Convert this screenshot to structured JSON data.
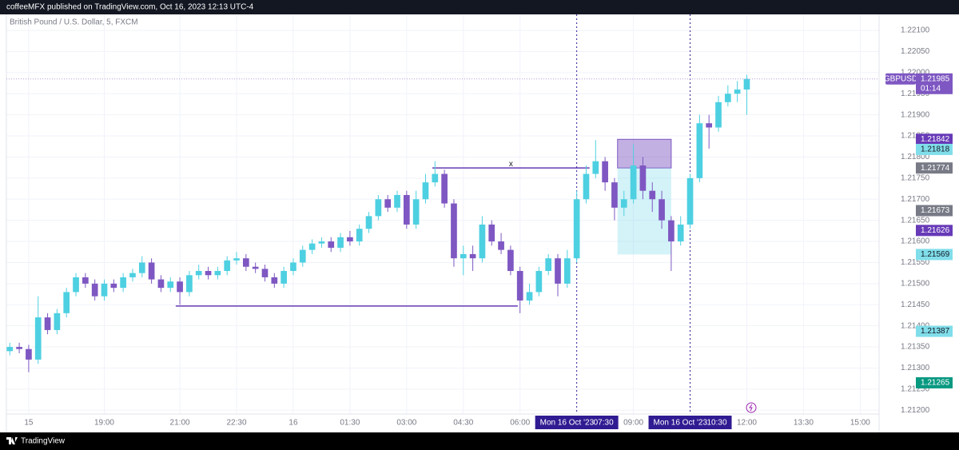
{
  "header": {
    "text": "coffeeMFX published on TradingView.com, Oct 16, 2023 12:13 UTC-4"
  },
  "footer": {
    "brand": "TradingView"
  },
  "chart_data": {
    "type": "candlestick",
    "title": "British Pound / U.S. Dollar, 5, FXCM",
    "up_color": "#4dd0e1",
    "down_color": "#7e57c2",
    "xlim": [
      16.41,
      39.5
    ],
    "ylim": [
      1.21191,
      1.22138
    ],
    "xticks": [
      {
        "value": 17,
        "label": "15"
      },
      {
        "value": 19,
        "label": "19:00"
      },
      {
        "value": 21,
        "label": "21:00"
      },
      {
        "value": 22.5,
        "label": "22:30"
      },
      {
        "value": 24,
        "label": "16"
      },
      {
        "value": 25.5,
        "label": "01:30"
      },
      {
        "value": 27,
        "label": "03:00"
      },
      {
        "value": 28.5,
        "label": "04:30"
      },
      {
        "value": 30,
        "label": "06:00"
      },
      {
        "value": 33,
        "label": "09:00"
      },
      {
        "value": 36,
        "label": "12:00"
      },
      {
        "value": 37.5,
        "label": "13:30"
      },
      {
        "value": 39,
        "label": "15:00"
      }
    ],
    "yticks": [
      {
        "value": 1.221,
        "label": "1.22100"
      },
      {
        "value": 1.2205,
        "label": "1.22050"
      },
      {
        "value": 1.22,
        "label": "1.22000"
      },
      {
        "value": 1.2195,
        "label": "1.21950"
      },
      {
        "value": 1.219,
        "label": "1.21900"
      },
      {
        "value": 1.2185,
        "label": "1.21850"
      },
      {
        "value": 1.218,
        "label": "1.21800"
      },
      {
        "value": 1.2175,
        "label": "1.21750"
      },
      {
        "value": 1.217,
        "label": "1.21700"
      },
      {
        "value": 1.2165,
        "label": "1.21650"
      },
      {
        "value": 1.216,
        "label": "1.21600"
      },
      {
        "value": 1.2155,
        "label": "1.21550"
      },
      {
        "value": 1.215,
        "label": "1.21500"
      },
      {
        "value": 1.2145,
        "label": "1.21450"
      },
      {
        "value": 1.214,
        "label": "1.21400"
      },
      {
        "value": 1.2135,
        "label": "1.21350"
      },
      {
        "value": 1.213,
        "label": "1.21300"
      },
      {
        "value": 1.2125,
        "label": "1.21250"
      },
      {
        "value": 1.212,
        "label": "1.21200"
      }
    ],
    "x": [
      16.5,
      16.75,
      17,
      17.25,
      17.5,
      17.75,
      18,
      18.25,
      18.5,
      18.75,
      19,
      19.25,
      19.5,
      19.75,
      20,
      20.25,
      20.5,
      20.75,
      21,
      21.25,
      21.5,
      21.75,
      22,
      22.25,
      22.5,
      22.75,
      23,
      23.25,
      23.5,
      23.75,
      24,
      24.25,
      24.5,
      24.75,
      25,
      25.25,
      25.5,
      25.75,
      26,
      26.25,
      26.5,
      26.75,
      27,
      27.25,
      27.5,
      27.75,
      28,
      28.25,
      28.5,
      28.75,
      29,
      29.25,
      29.5,
      29.75,
      30,
      30.25,
      30.5,
      30.75,
      31,
      31.25,
      31.5,
      31.75,
      32,
      32.25,
      32.5,
      32.75,
      33,
      33.25,
      33.5,
      33.75,
      34,
      34.25,
      34.5,
      34.75,
      35,
      35.25,
      35.5,
      35.75,
      36
    ],
    "open": [
      1.2134,
      1.2135,
      1.21345,
      1.2132,
      1.2142,
      1.2139,
      1.2143,
      1.2148,
      1.21515,
      1.215,
      1.2147,
      1.215,
      1.2149,
      1.21515,
      1.21525,
      1.2155,
      1.2151,
      1.2149,
      1.21505,
      1.2148,
      1.2152,
      1.2153,
      1.2152,
      1.2153,
      1.21555,
      1.2156,
      1.2154,
      1.21535,
      1.21515,
      1.215,
      1.2153,
      1.2155,
      1.2158,
      1.21595,
      1.216,
      1.21585,
      1.2161,
      1.216,
      1.2163,
      1.2166,
      1.217,
      1.2168,
      1.2171,
      1.2164,
      1.217,
      1.2174,
      1.2176,
      1.2169,
      1.2156,
      1.2157,
      1.2156,
      1.2164,
      1.216,
      1.2158,
      1.2153,
      1.2146,
      1.2148,
      1.2153,
      1.2156,
      1.215,
      1.2156,
      1.217,
      1.2176,
      1.2179,
      1.2174,
      1.2168,
      1.217,
      1.2178,
      1.2172,
      1.217,
      1.2165,
      1.216,
      1.2164,
      1.2175,
      1.2188,
      1.2187,
      1.2193,
      1.2195,
      1.2196
    ],
    "high": [
      1.2136,
      1.2136,
      1.21355,
      1.2147,
      1.2143,
      1.2144,
      1.2149,
      1.21525,
      1.21525,
      1.2151,
      1.2151,
      1.2151,
      1.21525,
      1.21535,
      1.21565,
      1.2156,
      1.2152,
      1.21515,
      1.21515,
      1.2153,
      1.21545,
      1.2154,
      1.2154,
      1.21565,
      1.21575,
      1.2157,
      1.2155,
      1.21545,
      1.21525,
      1.2154,
      1.2156,
      1.2159,
      1.21605,
      1.2161,
      1.2161,
      1.2162,
      1.21625,
      1.2164,
      1.2167,
      1.2171,
      1.2171,
      1.2172,
      1.2172,
      1.2172,
      1.2176,
      1.2179,
      1.2177,
      1.217,
      1.2159,
      1.2159,
      1.2166,
      1.2165,
      1.2162,
      1.2159,
      1.2154,
      1.215,
      1.2154,
      1.2157,
      1.2157,
      1.2158,
      1.2172,
      1.2178,
      1.2184,
      1.218,
      1.2175,
      1.2172,
      1.2183,
      1.218,
      1.2174,
      1.2172,
      1.2166,
      1.2166,
      1.2176,
      1.219,
      1.219,
      1.21945,
      1.2197,
      1.2198,
      1.21995
    ],
    "low": [
      1.2133,
      1.21335,
      1.2129,
      1.2131,
      1.2138,
      1.2138,
      1.2142,
      1.2147,
      1.2149,
      1.2146,
      1.2146,
      1.2148,
      1.2148,
      1.21505,
      1.21515,
      1.215,
      1.2148,
      1.2148,
      1.2145,
      1.2147,
      1.2151,
      1.2151,
      1.2151,
      1.2152,
      1.21545,
      1.2153,
      1.21525,
      1.21505,
      1.2149,
      1.2149,
      1.2152,
      1.2154,
      1.2157,
      1.21585,
      1.21575,
      1.21575,
      1.2159,
      1.2159,
      1.2162,
      1.2165,
      1.2167,
      1.2167,
      1.2163,
      1.2163,
      1.2169,
      1.2173,
      1.2168,
      1.2154,
      1.2152,
      1.2153,
      1.2155,
      1.2159,
      1.2157,
      1.2152,
      1.2143,
      1.2145,
      1.2147,
      1.2152,
      1.2147,
      1.2149,
      1.2155,
      1.2169,
      1.2175,
      1.2172,
      1.2165,
      1.2166,
      1.2169,
      1.217,
      1.2167,
      1.2163,
      1.2153,
      1.2159,
      1.2163,
      1.2174,
      1.2182,
      1.2186,
      1.2192,
      1.2193,
      1.219
    ],
    "close": [
      1.2135,
      1.21345,
      1.2132,
      1.2142,
      1.2139,
      1.2143,
      1.2148,
      1.21515,
      1.215,
      1.2147,
      1.215,
      1.2149,
      1.21515,
      1.21525,
      1.2155,
      1.2151,
      1.2149,
      1.21505,
      1.2148,
      1.2152,
      1.2153,
      1.2152,
      1.2153,
      1.21555,
      1.2156,
      1.2154,
      1.21535,
      1.21515,
      1.215,
      1.2153,
      1.2155,
      1.2158,
      1.21595,
      1.216,
      1.21585,
      1.2161,
      1.216,
      1.2163,
      1.2166,
      1.217,
      1.2168,
      1.2171,
      1.2164,
      1.217,
      1.2174,
      1.2176,
      1.2169,
      1.2156,
      1.2157,
      1.2156,
      1.2164,
      1.216,
      1.2158,
      1.2153,
      1.2146,
      1.2148,
      1.2153,
      1.2156,
      1.215,
      1.2156,
      1.217,
      1.2176,
      1.2179,
      1.2174,
      1.2168,
      1.217,
      1.2178,
      1.2172,
      1.217,
      1.2165,
      1.216,
      1.2164,
      1.2175,
      1.2188,
      1.2187,
      1.2193,
      1.2195,
      1.2196,
      1.21985
    ],
    "levels": [
      {
        "y": 1.21774,
        "x": [
          27.68,
          31.84
        ],
        "label": "x"
      },
      {
        "y": 1.21447,
        "x": [
          20.89,
          29.94
        ]
      }
    ],
    "position": {
      "x": [
        32.58,
        34.0
      ],
      "entry": 1.21774,
      "target": 1.21842,
      "stop": 1.21569
    },
    "vlines": [
      {
        "x": 31.5,
        "date": "Mon 16 Oct '23",
        "time": "07:30"
      },
      {
        "x": 34.5,
        "date": "Mon 16 Oct '23",
        "time": "10:30"
      }
    ],
    "price_labels": [
      {
        "value": 1.21985,
        "color": "#7e57c2",
        "symbol": "GBPUSD",
        "countdown": "01:14"
      },
      {
        "value": 1.21842,
        "color": "#673ab7"
      },
      {
        "value": 1.21818,
        "color": "#80deea"
      },
      {
        "value": 1.21774,
        "color": "#787b86"
      },
      {
        "value": 1.21673,
        "color": "#787b86"
      },
      {
        "value": 1.21626,
        "color": "#673ab7"
      },
      {
        "value": 1.21569,
        "color": "#80deea"
      },
      {
        "value": 1.21387,
        "color": "#80deea"
      },
      {
        "value": 1.21265,
        "color": "#089981"
      }
    ]
  }
}
